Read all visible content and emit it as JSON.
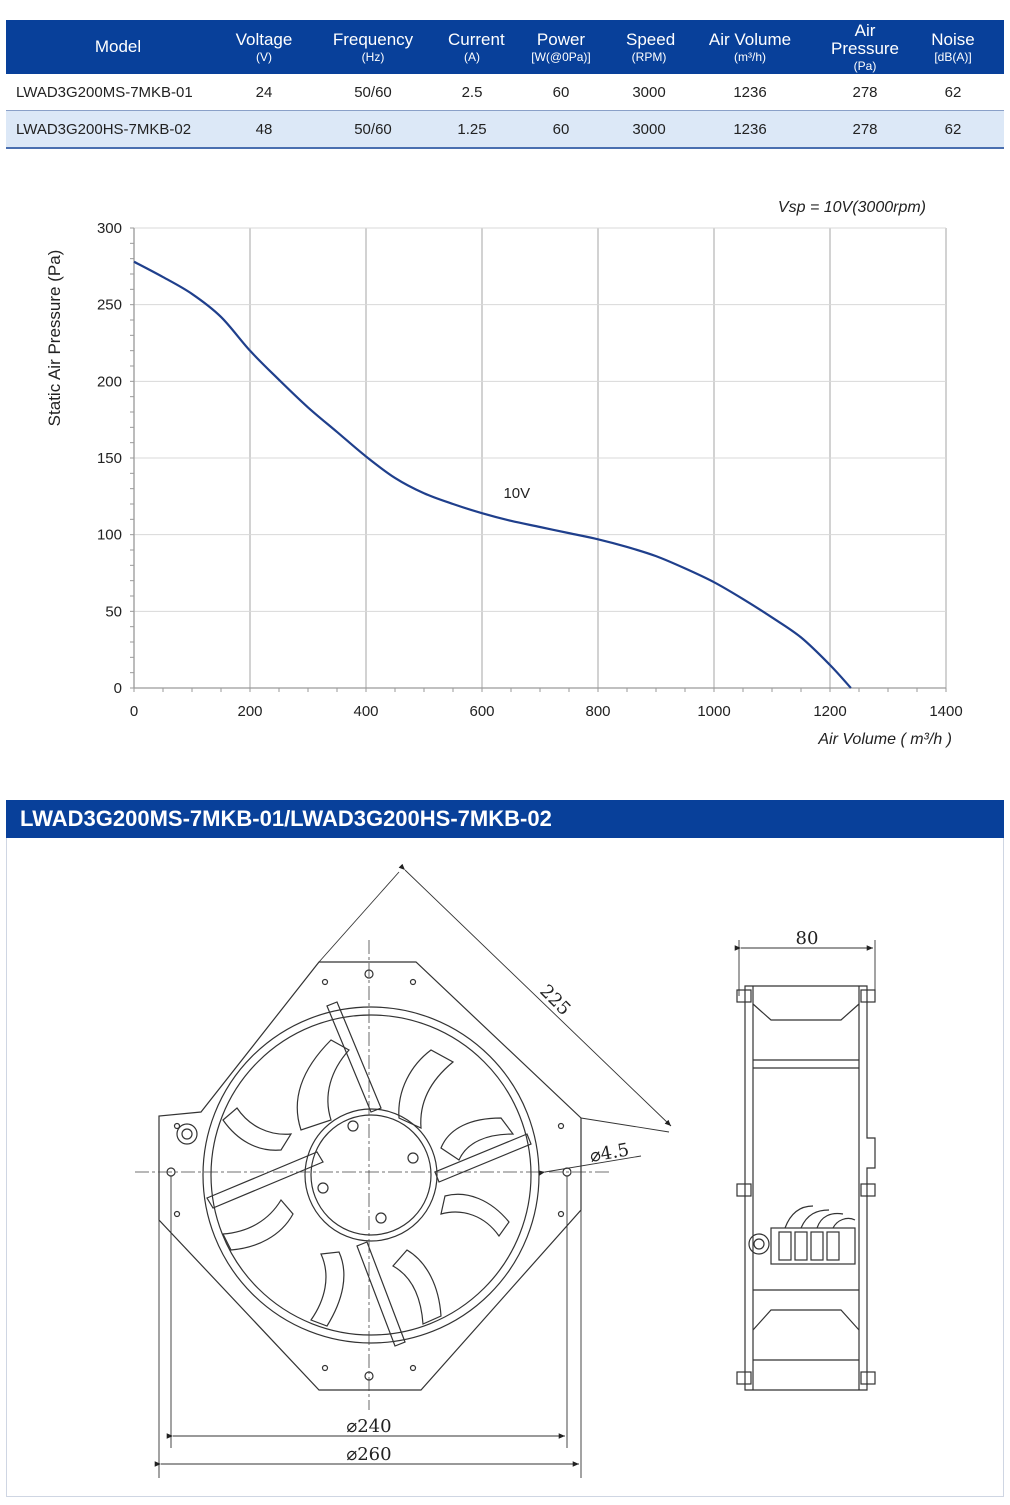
{
  "table": {
    "headers": [
      {
        "label": "Model",
        "unit": ""
      },
      {
        "label": "Voltage",
        "unit": "(V)"
      },
      {
        "label": "Frequency",
        "unit": "(Hz)"
      },
      {
        "label": "Current",
        "unit": "(A)"
      },
      {
        "label": "Power",
        "unit": "[W(@0Pa)]"
      },
      {
        "label": "Speed",
        "unit": "(RPM)"
      },
      {
        "label": "Air Volume",
        "unit": "(m³/h)"
      },
      {
        "label": "Air Pressure",
        "unit": "(Pa)"
      },
      {
        "label": "Noise",
        "unit": "[dB(A)]"
      }
    ],
    "rows": [
      [
        "LWAD3G200MS-7MKB-01",
        "24",
        "50/60",
        "2.5",
        "60",
        "3000",
        "1236",
        "278",
        "62"
      ],
      [
        "LWAD3G200HS-7MKB-02",
        "48",
        "50/60",
        "1.25",
        "60",
        "3000",
        "1236",
        "278",
        "62"
      ]
    ]
  },
  "chart_data": {
    "type": "line",
    "title": "",
    "annotation": "Vsp = 10V(3000rpm)",
    "xlabel": "Air Volume ( m³/h )",
    "ylabel": "Static Air Pressure  (Pa)",
    "xlim": [
      0,
      1400
    ],
    "ylim": [
      0,
      300
    ],
    "xticks": [
      0,
      200,
      400,
      600,
      800,
      1000,
      1200,
      1400
    ],
    "yticks": [
      0,
      50,
      100,
      150,
      200,
      250,
      300
    ],
    "grid": true,
    "series": [
      {
        "name": "10V",
        "color": "#1f3f8c",
        "x": [
          0,
          50,
          100,
          150,
          200,
          250,
          300,
          350,
          400,
          450,
          500,
          550,
          600,
          650,
          700,
          750,
          800,
          850,
          900,
          950,
          1000,
          1050,
          1100,
          1150,
          1200,
          1236
        ],
        "y": [
          278,
          268,
          257,
          242,
          220,
          201,
          183,
          167,
          151,
          137,
          127,
          120,
          114,
          109,
          105,
          101,
          97,
          92,
          86,
          78,
          69,
          58,
          46,
          33,
          15,
          0
        ]
      }
    ]
  },
  "section": {
    "title": "LWAD3G200MS-7MKB-01/LWAD3G200HS-7MKB-02"
  },
  "drawing": {
    "dim_diagonal": "225",
    "dim_hole": "⌀4.5",
    "dim_inner": "⌀240",
    "dim_outer": "⌀260",
    "dim_depth": "80"
  }
}
